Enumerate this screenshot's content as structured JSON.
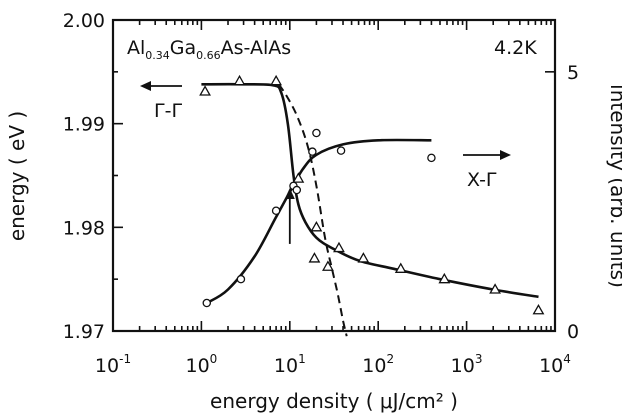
{
  "chart_data": {
    "type": "scatter",
    "title": "",
    "sample_label": {
      "parts": [
        "Al",
        "0.34",
        "Ga",
        "0.66",
        "As-AlAs"
      ]
    },
    "temperature_label": "4.2K",
    "xlabel": "energy density ( μJ/cm² )",
    "ylabel_left": "energy ( eV )",
    "ylabel_right": "intensity (arb. units)",
    "x_scale": "log",
    "xlim": [
      0.1,
      10000
    ],
    "ylim_left": [
      1.97,
      2.0
    ],
    "ylim_right": [
      0,
      6
    ],
    "x_ticks": [
      {
        "value": 0.1,
        "base": "10",
        "exp": "-1"
      },
      {
        "value": 1,
        "base": "10",
        "exp": "0"
      },
      {
        "value": 10,
        "base": "10",
        "exp": "1"
      },
      {
        "value": 100,
        "base": "10",
        "exp": "2"
      },
      {
        "value": 1000,
        "base": "10",
        "exp": "3"
      },
      {
        "value": 10000,
        "base": "10",
        "exp": "4"
      }
    ],
    "y_ticks_left": [
      {
        "value": 1.97,
        "label": "1.97"
      },
      {
        "value": 1.98,
        "label": "1.98"
      },
      {
        "value": 1.99,
        "label": "1.99"
      },
      {
        "value": 2.0,
        "label": "2.00"
      }
    ],
    "y_ticks_right": [
      {
        "value": 0,
        "label": "0"
      },
      {
        "value": 5,
        "label": "5"
      }
    ],
    "annotations": {
      "gamma_gamma": "Γ-Γ",
      "x_gamma": "X-Γ"
    },
    "series": [
      {
        "marker": "triangle",
        "axis": "left",
        "points": [
          [
            1.1,
            1.9931
          ],
          [
            2.7,
            1.9941
          ],
          [
            7.0,
            1.9941
          ],
          [
            12.5,
            1.9847
          ],
          [
            20,
            1.98
          ],
          [
            19,
            1.977
          ],
          [
            27,
            1.9762
          ],
          [
            36,
            1.978
          ],
          [
            68,
            1.977
          ],
          [
            180,
            1.976
          ],
          [
            560,
            1.975
          ],
          [
            2100,
            1.974
          ],
          [
            6500,
            1.972
          ]
        ]
      },
      {
        "marker": "circle",
        "axis": "left",
        "points": [
          [
            1.15,
            1.9727
          ],
          [
            2.8,
            1.975
          ],
          [
            7.0,
            1.9816
          ],
          [
            11,
            1.984
          ],
          [
            12,
            1.9836
          ],
          [
            18,
            1.9873
          ],
          [
            20,
            1.9891
          ],
          [
            38,
            1.9874
          ],
          [
            400,
            1.9867
          ]
        ]
      },
      {
        "style": "solid",
        "axis": "left",
        "points": [
          [
            1.0,
            1.9938
          ],
          [
            3,
            1.9938
          ],
          [
            6.5,
            1.9937
          ],
          [
            8,
            1.993
          ],
          [
            9.5,
            1.99
          ],
          [
            11,
            1.985
          ],
          [
            12.5,
            1.9822
          ],
          [
            15,
            1.9805
          ],
          [
            20,
            1.979
          ],
          [
            30,
            1.978
          ],
          [
            60,
            1.9768
          ],
          [
            150,
            1.976
          ],
          [
            500,
            1.975
          ],
          [
            2000,
            1.974
          ],
          [
            6500,
            1.9733
          ]
        ]
      },
      {
        "style": "solid",
        "axis": "left",
        "points": [
          [
            1.15,
            1.9727
          ],
          [
            2,
            1.974
          ],
          [
            4,
            1.9772
          ],
          [
            7,
            1.981
          ],
          [
            10,
            1.9834
          ],
          [
            14,
            1.9856
          ],
          [
            20,
            1.987
          ],
          [
            40,
            1.988
          ],
          [
            100,
            1.9884
          ],
          [
            400,
            1.9884
          ]
        ]
      },
      {
        "style": "dashed",
        "axis": "left",
        "points": [
          [
            7.5,
            1.9938
          ],
          [
            9,
            1.9928
          ],
          [
            12,
            1.9908
          ],
          [
            16,
            1.9878
          ],
          [
            20,
            1.984
          ],
          [
            25,
            1.979
          ],
          [
            30,
            1.976
          ],
          [
            35,
            1.9735
          ],
          [
            40,
            1.971
          ],
          [
            44,
            1.9695
          ]
        ]
      }
    ],
    "arrows": [
      {
        "from": [
          10,
          1.9784
        ],
        "to": [
          10,
          1.9838
        ]
      }
    ]
  }
}
